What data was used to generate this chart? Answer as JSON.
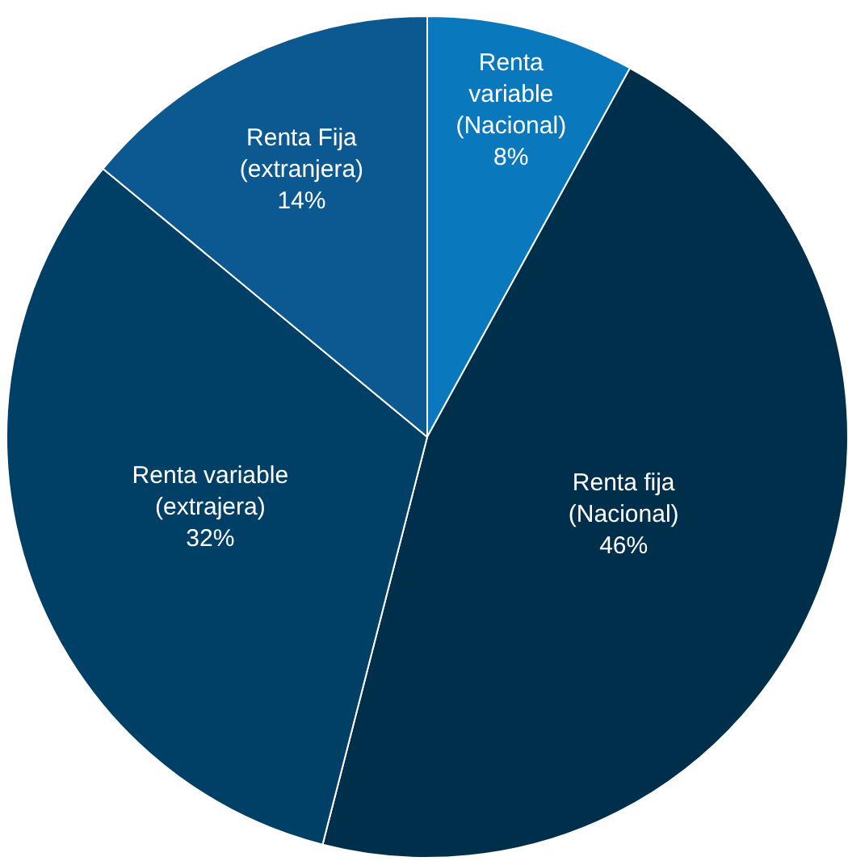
{
  "chart_data": {
    "type": "pie",
    "categories": [
      "Renta\nvariable\n(Nacional)",
      "Renta fija\n(Nacional)",
      "Renta variable\n(extrajera)",
      "Renta Fija\n(extranjera)"
    ],
    "values": [
      8,
      46,
      32,
      14
    ],
    "value_labels": [
      "8%",
      "46%",
      "32%",
      "14%"
    ],
    "colors": [
      "#0a78bd",
      "#002f4c",
      "#003f66",
      "#0b5990"
    ],
    "legend": false
  }
}
